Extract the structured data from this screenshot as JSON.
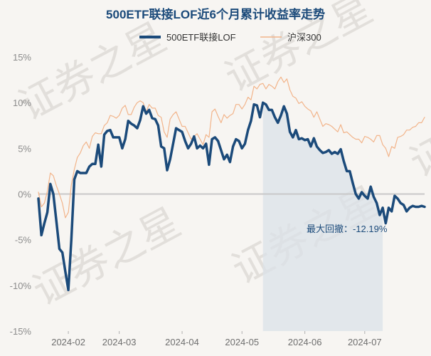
{
  "chart_data": {
    "type": "line",
    "title": "500ETF联接LOF近6个月累计收益率走势",
    "watermark_text": "证券之星",
    "colors": {
      "fund": "#1b4a7a",
      "index": "#f2b48a",
      "drawdown_fill": "#dbe1e8",
      "axis_text": "#8c8c8c",
      "zero_line": "#c8c8c8",
      "annotation": "#1b4a7a"
    },
    "xlabel": "",
    "ylabel": "",
    "ylim": [
      -15,
      15
    ],
    "xlim": [
      0,
      129
    ],
    "yticks": [
      15,
      10,
      5,
      0,
      -5,
      -10,
      -15
    ],
    "ytick_labels": [
      "15%",
      "10%",
      "5%",
      "0%",
      "-5%",
      "-10%",
      "-15%"
    ],
    "xticks": [
      10,
      27,
      48,
      68,
      89,
      109
    ],
    "xtick_labels": [
      "2024-02",
      "2024-03",
      "2024-04",
      "2024-05",
      "2024-06",
      "2024-07"
    ],
    "legend": {
      "position": "top-center"
    },
    "series": [
      {
        "name": "500ETF联接LOF",
        "x": [
          0,
          1,
          2,
          3,
          4,
          5,
          6,
          7,
          8,
          9,
          10,
          11,
          12,
          13,
          14,
          15,
          16,
          17,
          18,
          19,
          20,
          21,
          22,
          23,
          24,
          25,
          26,
          27,
          28,
          29,
          30,
          31,
          32,
          33,
          34,
          35,
          36,
          37,
          38,
          39,
          40,
          41,
          42,
          43,
          44,
          45,
          46,
          47,
          48,
          49,
          50,
          51,
          52,
          53,
          54,
          55,
          56,
          57,
          58,
          59,
          60,
          61,
          62,
          63,
          64,
          65,
          66,
          67,
          68,
          69,
          70,
          71,
          72,
          73,
          74,
          75,
          76,
          77,
          78,
          79,
          80,
          81,
          82,
          83,
          84,
          85,
          86,
          87,
          88,
          89,
          90,
          91,
          92,
          93,
          94,
          95,
          96,
          97,
          98,
          99,
          100,
          101,
          102,
          103,
          104,
          105,
          106,
          107,
          108,
          109,
          110,
          111,
          112,
          113,
          114,
          115,
          116,
          117,
          118,
          119,
          120,
          121,
          122,
          123,
          124,
          125,
          126,
          127,
          128,
          129
        ],
        "values": [
          -0.5,
          -4.5,
          -3.2,
          -2.0,
          1.1,
          0.0,
          -3.0,
          -6.0,
          -6.4,
          -8.5,
          -10.5,
          -5.0,
          1.6,
          2.5,
          2.3,
          2.3,
          2.3,
          3.0,
          3.3,
          3.3,
          5.4,
          3.0,
          6.5,
          6.9,
          7.0,
          6.2,
          6.2,
          6.2,
          5.0,
          6.0,
          8.0,
          7.7,
          7.5,
          7.2,
          8.1,
          9.6,
          8.8,
          9.2,
          8.3,
          8.2,
          7.5,
          5.2,
          5.0,
          2.6,
          3.8,
          5.5,
          7.2,
          7.0,
          6.8,
          5.8,
          5.0,
          5.5,
          6.3,
          5.0,
          5.3,
          5.0,
          5.5,
          3.2,
          6.0,
          6.2,
          5.8,
          4.8,
          3.8,
          4.3,
          3.5,
          5.2,
          6.0,
          5.8,
          5.0,
          5.5,
          7.0,
          8.0,
          9.8,
          9.7,
          8.4,
          10.0,
          9.8,
          9.2,
          9.2,
          8.4,
          7.8,
          8.6,
          9.6,
          8.8,
          6.8,
          6.2,
          7.0,
          6.0,
          6.1,
          5.9,
          6.0,
          5.2,
          6.1,
          5.2,
          4.8,
          4.5,
          4.6,
          4.8,
          4.4,
          4.6,
          4.4,
          4.9,
          3.6,
          2.5,
          2.5,
          1.2,
          0.0,
          -0.5,
          0.2,
          -0.2,
          -0.5,
          0.8,
          -0.3,
          -1.0,
          -2.3,
          -1.5,
          -3.2,
          -1.5,
          -1.9,
          -0.2,
          -0.5,
          -1.0,
          -1.2,
          -1.9,
          -1.5,
          -1.3,
          -1.4,
          -1.4,
          -1.3,
          -1.4
        ]
      },
      {
        "name": "沪深300",
        "x": [
          0,
          1,
          2,
          3,
          4,
          5,
          6,
          7,
          8,
          9,
          10,
          11,
          12,
          13,
          14,
          15,
          16,
          17,
          18,
          19,
          20,
          21,
          22,
          23,
          24,
          25,
          26,
          27,
          28,
          29,
          30,
          31,
          32,
          33,
          34,
          35,
          36,
          37,
          38,
          39,
          40,
          41,
          42,
          43,
          44,
          45,
          46,
          47,
          48,
          49,
          50,
          51,
          52,
          53,
          54,
          55,
          56,
          57,
          58,
          59,
          60,
          61,
          62,
          63,
          64,
          65,
          66,
          67,
          68,
          69,
          70,
          71,
          72,
          73,
          74,
          75,
          76,
          77,
          78,
          79,
          80,
          81,
          82,
          83,
          84,
          85,
          86,
          87,
          88,
          89,
          90,
          91,
          92,
          93,
          94,
          95,
          96,
          97,
          98,
          99,
          100,
          101,
          102,
          103,
          104,
          105,
          106,
          107,
          108,
          109,
          110,
          111,
          112,
          113,
          114,
          115,
          116,
          117,
          118,
          119,
          120,
          121,
          122,
          123,
          124,
          125,
          126,
          127,
          128,
          129
        ],
        "values": [
          0.2,
          -1.4,
          -1.0,
          0.3,
          2.3,
          2.0,
          0.9,
          0.0,
          -1.0,
          -2.6,
          -2.0,
          1.0,
          2.7,
          4.0,
          4.5,
          5.3,
          5.7,
          5.0,
          6.3,
          6.7,
          6.6,
          6.6,
          7.5,
          7.8,
          8.6,
          8.5,
          8.3,
          8.6,
          9.4,
          9.7,
          8.7,
          8.7,
          9.5,
          10.0,
          10.2,
          10.0,
          9.0,
          9.8,
          9.4,
          9.4,
          8.6,
          8.4,
          6.8,
          6.2,
          8.2,
          8.7,
          9.0,
          8.2,
          7.4,
          7.4,
          6.7,
          6.0,
          6.3,
          6.6,
          6.0,
          5.4,
          6.5,
          6.2,
          9.0,
          9.3,
          8.5,
          7.8,
          8.7,
          8.3,
          8.6,
          8.8,
          9.8,
          9.8,
          9.3,
          9.8,
          10.6,
          10.3,
          11.8,
          11.5,
          12.0,
          12.1,
          11.5,
          12.0,
          11.8,
          11.5,
          12.3,
          12.8,
          12.2,
          12.6,
          11.4,
          10.7,
          10.5,
          9.9,
          10.1,
          9.6,
          9.3,
          9.1,
          8.4,
          9.0,
          8.2,
          7.4,
          7.7,
          7.6,
          7.4,
          7.1,
          6.8,
          7.6,
          6.7,
          6.8,
          6.5,
          6.2,
          6.0,
          6.0,
          5.6,
          6.3,
          6.2,
          6.0,
          5.7,
          6.4,
          6.4,
          5.4,
          5.0,
          4.1,
          5.2,
          5.0,
          6.2,
          6.3,
          6.5,
          7.0,
          7.0,
          7.3,
          7.4,
          7.8,
          7.8,
          8.4
        ]
      }
    ],
    "annotation": {
      "text": "最大回撤：-12.19%",
      "shade_start_x": 75,
      "shade_end_x": 115
    }
  }
}
